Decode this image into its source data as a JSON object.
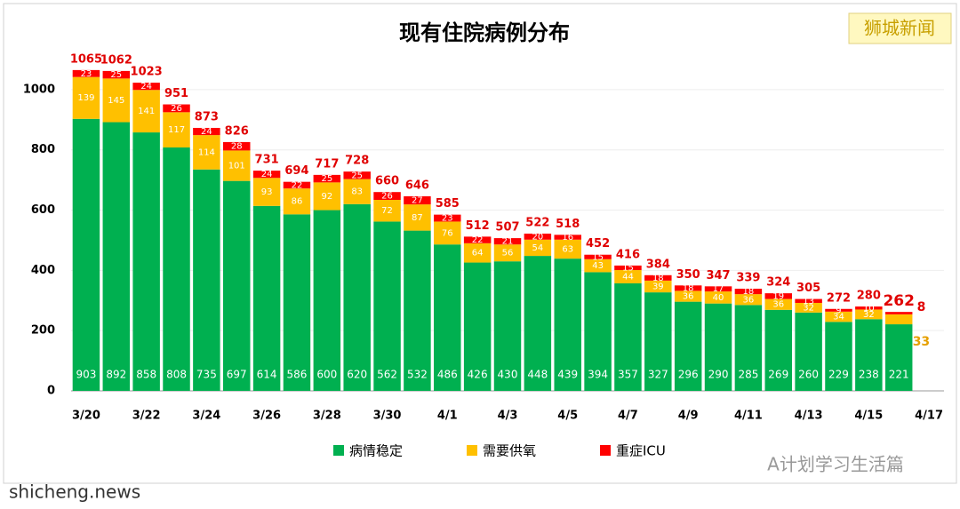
{
  "chart_data": {
    "type": "stacked_bar",
    "title": "现有住院病例分布",
    "categories": [
      "3/20",
      null,
      "3/22",
      null,
      "3/24",
      null,
      "3/26",
      null,
      "3/28",
      null,
      "3/30",
      null,
      "4/1",
      null,
      "4/3",
      null,
      "4/5",
      null,
      "4/7",
      null,
      "4/9",
      null,
      "4/11",
      null,
      "4/13",
      null,
      "4/15",
      null,
      "4/17"
    ],
    "series": [
      {
        "name": "病情稳定",
        "color": "#00b050",
        "values": [
          903,
          892,
          858,
          808,
          735,
          697,
          614,
          586,
          600,
          620,
          562,
          532,
          486,
          426,
          430,
          448,
          439,
          394,
          357,
          327,
          296,
          290,
          285,
          269,
          260,
          229,
          238,
          221,
          null
        ]
      },
      {
        "name": "需要供氧",
        "color": "#ffc000",
        "values": [
          139,
          145,
          141,
          117,
          114,
          101,
          93,
          86,
          92,
          83,
          72,
          87,
          76,
          64,
          56,
          54,
          63,
          43,
          44,
          39,
          36,
          40,
          36,
          36,
          32,
          34,
          32,
          33,
          null
        ]
      },
      {
        "name": "重症ICU",
        "color": "#ff0000",
        "values": [
          23,
          25,
          24,
          26,
          24,
          28,
          24,
          22,
          25,
          25,
          26,
          27,
          23,
          22,
          21,
          20,
          16,
          15,
          15,
          18,
          18,
          17,
          18,
          19,
          13,
          9,
          10,
          8,
          null
        ]
      }
    ],
    "totals": [
      1065,
      1062,
      1023,
      951,
      873,
      826,
      731,
      694,
      717,
      728,
      660,
      646,
      585,
      512,
      507,
      522,
      518,
      452,
      416,
      384,
      350,
      347,
      339,
      324,
      305,
      272,
      280,
      262,
      null
    ],
    "ylim": [
      0,
      1100
    ],
    "yticks": [
      0,
      200,
      400,
      600,
      800,
      1000
    ],
    "grid": true
  },
  "watermarks": {
    "top_right": "狮城新闻",
    "bottom_right": "A计划学习生活篇",
    "bottom_left": "shicheng.news"
  }
}
